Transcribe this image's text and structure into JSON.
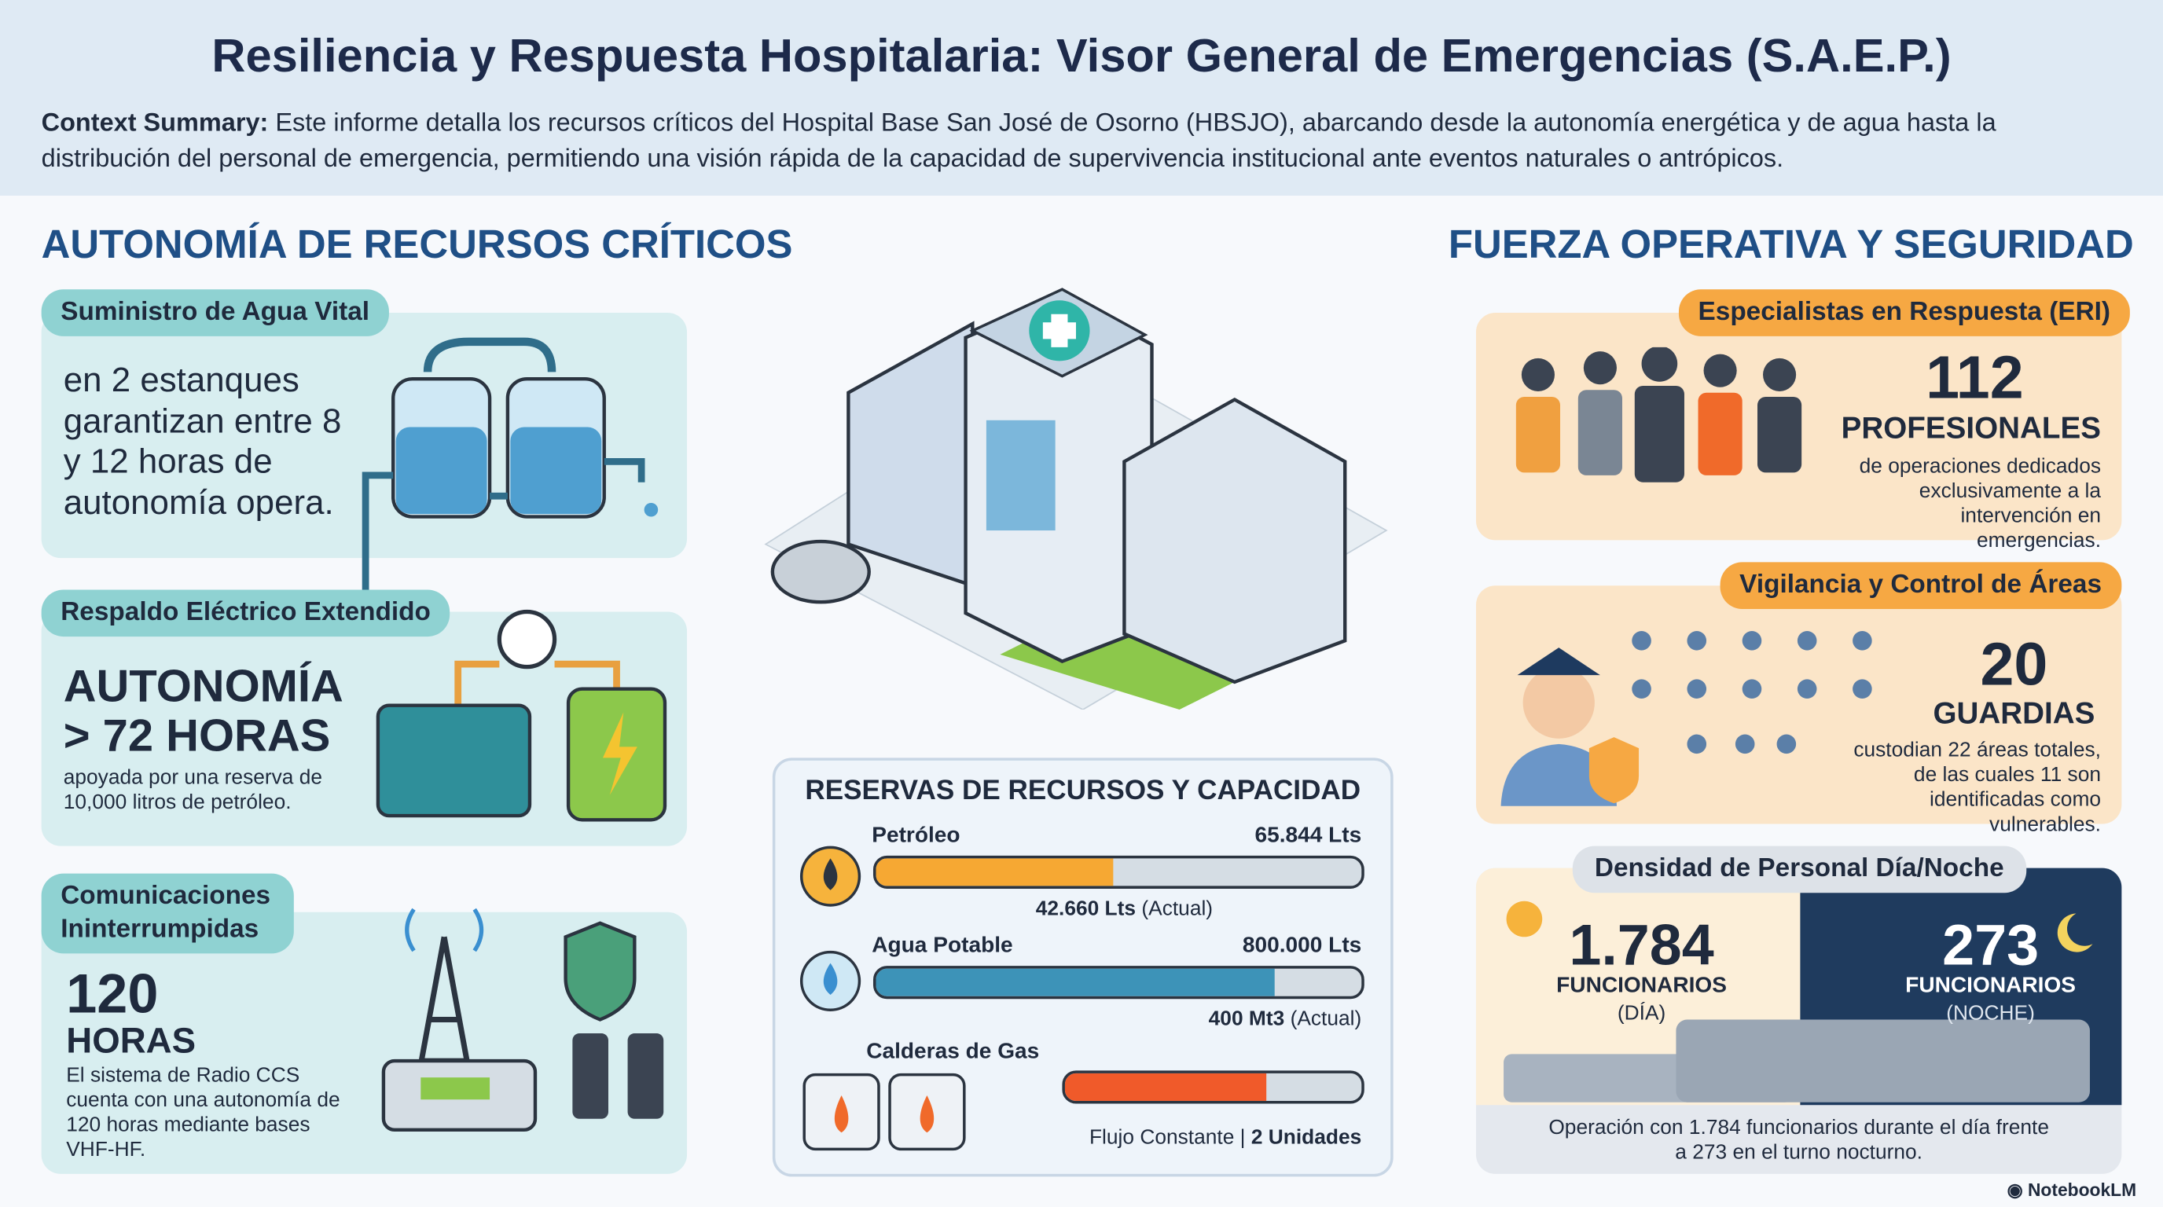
{
  "header": {
    "title": "Resiliencia y Respuesta Hospitalaria: Visor General de Emergencias (S.A.E.P.)",
    "context_label": "Context Summary:",
    "context_text": "Este informe detalla los recursos críticos del Hospital Base San José de Osorno (HBSJO), abarcando desde la autonomía energética y de agua hasta la distribución del personal de emergencia, permitiendo una visión rápida de la capacidad de supervivencia institucional ante eventos naturales o antrópicos."
  },
  "left": {
    "heading": "AUTONOMÍA DE RECURSOS CRÍTICOS",
    "water": {
      "title": "Suministro de Agua Vital",
      "text": "en 2 estanques garantizan entre 8 y 12 horas de autonomía opera."
    },
    "power": {
      "title": "Respaldo Eléctrico Extendido",
      "big_line1": "AUTONOMÍA",
      "big_line2": "> 72 HORAS",
      "text": "apoyada por una reserva de 10,000 litros de petróleo."
    },
    "comms": {
      "title": "Comunicaciones Ininterrumpidas",
      "big": "120",
      "unit": "HORAS",
      "text": "El sistema de Radio CCS cuenta con una autonomía de 120 horas mediante bases VHF-HF."
    }
  },
  "center": {
    "reserves": {
      "title": "RESERVAS DE RECURSOS Y CAPACIDAD",
      "items": [
        {
          "name": "Petróleo",
          "total": "65.844 Lts",
          "actual": "42.660 Lts",
          "actual_note": "(Actual)"
        },
        {
          "name": "Agua Potable",
          "total": "800.000 Lts",
          "actual": "400 Mt3",
          "actual_note": "(Actual)"
        },
        {
          "name": "Calderas de Gas",
          "note": "Flujo Constante",
          "units": "2 Unidades"
        }
      ]
    }
  },
  "right": {
    "heading": "FUERZA OPERATIVA Y SEGURIDAD",
    "eri": {
      "title": "Especialistas en Respuesta (ERI)",
      "number": "112",
      "unit": "PROFESIONALES",
      "text": "de operaciones dedicados exclusivamente a la intervención en emergencias."
    },
    "guards": {
      "title": "Vigilancia y Control de Áreas",
      "number": "20",
      "unit": "GUARDIAS",
      "text": "custodian 22 áreas totales, de las cuales 11 son identificadas como vulnerables."
    },
    "density": {
      "title": "Densidad de Personal Día/Noche",
      "day_number": "1.784",
      "day_label": "FUNCIONARIOS",
      "day_sub": "(DÍA)",
      "night_number": "273",
      "night_label": "FUNCIONARIOS",
      "night_sub": "(NOCHE)",
      "footer": "Operación con 1.784 funcionarios durante el día frente a 273 en el turno nocturno."
    }
  },
  "brand": "NotebookLM"
}
